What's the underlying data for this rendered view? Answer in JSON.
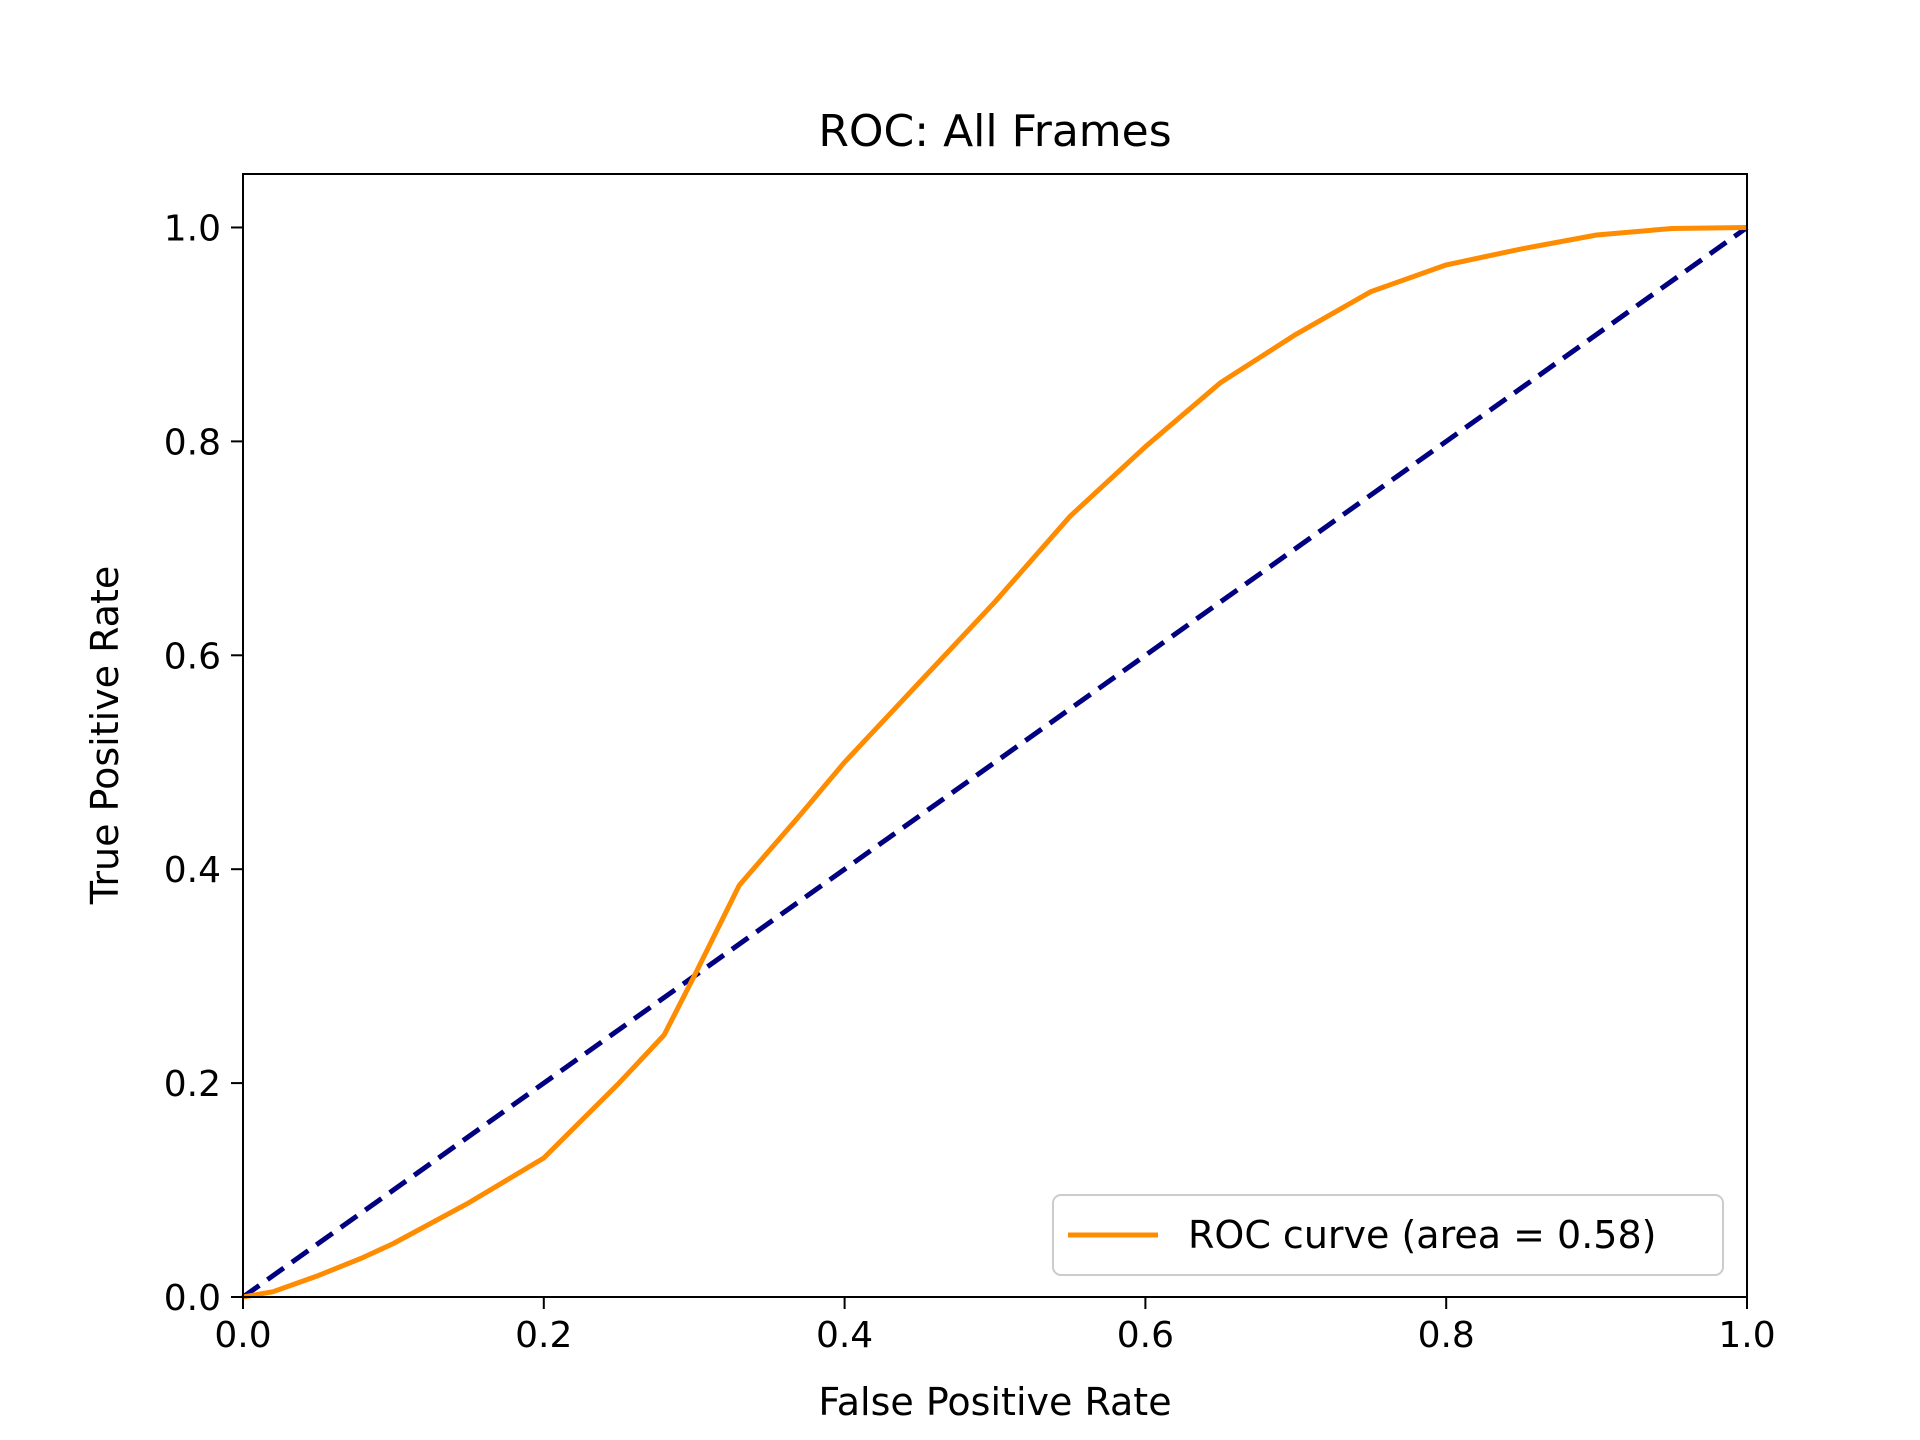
{
  "chart_data": {
    "type": "line",
    "title": "ROC: All Frames",
    "xlabel": "False Positive Rate",
    "ylabel": "True Positive Rate",
    "xlim": [
      0.0,
      1.0
    ],
    "ylim": [
      0.0,
      1.05
    ],
    "x_ticks": [
      0.0,
      0.2,
      0.4,
      0.6,
      0.8,
      1.0
    ],
    "y_ticks": [
      0.0,
      0.2,
      0.4,
      0.6,
      0.8,
      1.0
    ],
    "x_tick_labels": [
      "0.0",
      "0.2",
      "0.4",
      "0.6",
      "0.8",
      "1.0"
    ],
    "y_tick_labels": [
      "0.0",
      "0.2",
      "0.4",
      "0.6",
      "0.8",
      "1.0"
    ],
    "grid": false,
    "legend_position": "bottom-right",
    "series": [
      {
        "name": "ROC curve (area = 0.58)",
        "color": "#ff8c00",
        "style": "solid",
        "x": [
          0.0,
          0.02,
          0.05,
          0.08,
          0.1,
          0.15,
          0.2,
          0.25,
          0.28,
          0.3,
          0.33,
          0.37,
          0.4,
          0.45,
          0.5,
          0.55,
          0.6,
          0.65,
          0.7,
          0.75,
          0.8,
          0.85,
          0.9,
          0.95,
          1.0
        ],
        "y": [
          0.0,
          0.005,
          0.02,
          0.037,
          0.05,
          0.088,
          0.13,
          0.2,
          0.245,
          0.3,
          0.385,
          0.45,
          0.5,
          0.575,
          0.65,
          0.73,
          0.795,
          0.855,
          0.9,
          0.94,
          0.965,
          0.98,
          0.993,
          0.999,
          1.0
        ]
      },
      {
        "name": "",
        "color": "#000080",
        "style": "dashed",
        "x": [
          0.0,
          1.0
        ],
        "y": [
          0.0,
          1.0
        ]
      }
    ]
  }
}
